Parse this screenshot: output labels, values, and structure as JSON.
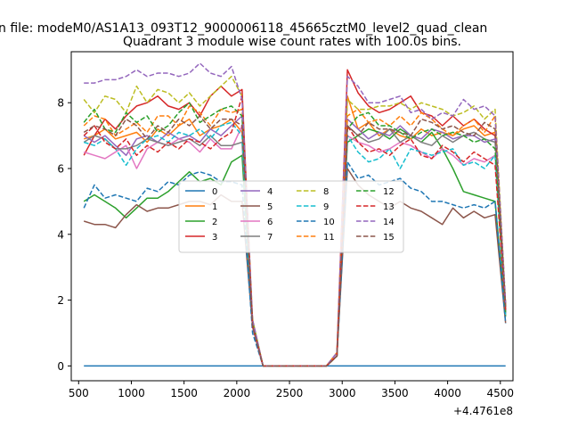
{
  "figure": {
    "suptitle": "n file: modeM0/AS1A13_093T12_9000006118_45665cztM0_level2_quad_clean",
    "title": "Quadrant 3 module wise count rates with 100.0s bins.",
    "offset_text": "+4.4761e8"
  },
  "chart_data": {
    "type": "line",
    "title": "Quadrant 3 module wise count rates with 100.0s bins.",
    "xlabel": "",
    "ylabel": "",
    "xlim": [
      430,
      4620
    ],
    "ylim": [
      -0.45,
      9.55
    ],
    "x": [
      550,
      650,
      750,
      850,
      950,
      1050,
      1150,
      1250,
      1350,
      1450,
      1550,
      1650,
      1750,
      1850,
      1950,
      2050,
      2150,
      2250,
      2350,
      2450,
      2550,
      2650,
      2750,
      2850,
      2950,
      3050,
      3150,
      3250,
      3350,
      3450,
      3550,
      3650,
      3750,
      3850,
      3950,
      4050,
      4150,
      4250,
      4350,
      4450,
      4550
    ],
    "xticks": [
      500,
      1000,
      1500,
      2000,
      2500,
      3000,
      3500,
      4000,
      4500
    ],
    "xtick_labels": [
      "500",
      "1000",
      "1500",
      "2000",
      "2500",
      "3000",
      "3500",
      "4000",
      "4500"
    ],
    "yticks": [
      0,
      2,
      4,
      6,
      8
    ],
    "ytick_labels": [
      "0",
      "2",
      "4",
      "6",
      "8"
    ],
    "legend_location": "center",
    "legend_columns": 4,
    "series": [
      {
        "name": "0",
        "color": "#1f77b4",
        "dash": "solid",
        "values": [
          0,
          0,
          0,
          0,
          0,
          0,
          0,
          0,
          0,
          0,
          0,
          0,
          0,
          0,
          0,
          0,
          0,
          0,
          0,
          0,
          0,
          0,
          0,
          0,
          0,
          0,
          0,
          0,
          0,
          0,
          0,
          0,
          0,
          0,
          0,
          0,
          0,
          0,
          0,
          0,
          0
        ]
      },
      {
        "name": "1",
        "color": "#ff7f0e",
        "dash": "solid",
        "values": [
          6.9,
          7.0,
          7.2,
          6.9,
          7.0,
          7.1,
          6.8,
          7.2,
          7.0,
          7.3,
          7.5,
          7.0,
          7.2,
          7.3,
          7.5,
          7.1,
          1.4,
          0,
          0,
          0,
          0,
          0,
          0,
          0,
          0.3,
          8.2,
          7.2,
          7.4,
          7.0,
          7.2,
          7.0,
          6.9,
          7.2,
          7.0,
          7.1,
          7.0,
          7.2,
          7.3,
          7.0,
          7.1,
          1.8
        ]
      },
      {
        "name": "2",
        "color": "#2ca02c",
        "dash": "solid",
        "values": [
          5.0,
          5.2,
          5.0,
          4.8,
          4.5,
          4.8,
          5.1,
          5.1,
          5.3,
          5.6,
          5.9,
          5.6,
          5.7,
          5.5,
          6.2,
          6.4,
          1.2,
          0,
          0,
          0,
          0,
          0,
          0,
          0,
          0.3,
          6.8,
          7.0,
          7.2,
          7.1,
          6.9,
          7.2,
          7.0,
          6.8,
          7.1,
          6.6,
          6.0,
          5.3,
          5.2,
          5.1,
          5.0,
          1.5
        ]
      },
      {
        "name": "3",
        "color": "#d62728",
        "dash": "solid",
        "values": [
          6.4,
          7.0,
          7.5,
          7.2,
          7.6,
          7.9,
          8.0,
          8.2,
          7.9,
          7.8,
          8.0,
          7.6,
          8.2,
          8.5,
          8.2,
          8.4,
          1.2,
          0,
          0,
          0,
          0,
          0,
          0,
          0,
          0.4,
          9.0,
          8.3,
          7.9,
          7.7,
          7.8,
          8.0,
          8.2,
          7.7,
          7.6,
          7.3,
          7.6,
          7.3,
          7.5,
          7.2,
          7.0,
          1.7
        ]
      },
      {
        "name": "4",
        "color": "#9467bd",
        "dash": "solid",
        "values": [
          7.0,
          6.8,
          7.0,
          6.7,
          6.4,
          6.9,
          7.0,
          6.8,
          7.1,
          6.9,
          7.0,
          6.8,
          7.2,
          7.0,
          7.3,
          7.6,
          1.2,
          0,
          0,
          0,
          0,
          0,
          0,
          0,
          0.3,
          7.5,
          7.2,
          6.9,
          7.1,
          7.0,
          7.3,
          7.0,
          6.9,
          7.2,
          7.1,
          6.9,
          7.0,
          7.0,
          6.8,
          6.9,
          1.6
        ]
      },
      {
        "name": "5",
        "color": "#8c564b",
        "dash": "solid",
        "values": [
          4.4,
          4.3,
          4.3,
          4.2,
          4.6,
          4.9,
          4.7,
          4.8,
          4.8,
          4.9,
          5.0,
          5.0,
          4.9,
          5.2,
          5.0,
          5.0,
          1.2,
          0,
          0,
          0,
          0,
          0,
          0,
          0,
          0.3,
          6.0,
          5.5,
          5.2,
          5.0,
          4.8,
          5.0,
          4.8,
          4.7,
          4.5,
          4.3,
          4.8,
          4.5,
          4.7,
          4.5,
          4.6,
          1.3
        ]
      },
      {
        "name": "6",
        "color": "#e377c2",
        "dash": "solid",
        "values": [
          6.5,
          6.4,
          6.3,
          6.5,
          6.7,
          6.0,
          6.6,
          6.8,
          6.7,
          6.9,
          6.8,
          6.5,
          6.9,
          6.6,
          6.6,
          7.3,
          1.3,
          0,
          0,
          0,
          0,
          0,
          0,
          0,
          0.4,
          7.0,
          6.8,
          6.7,
          6.5,
          6.6,
          6.8,
          6.7,
          6.5,
          6.3,
          6.6,
          6.4,
          6.1,
          6.3,
          6.2,
          6.4,
          1.6
        ]
      },
      {
        "name": "7",
        "color": "#7f7f7f",
        "dash": "solid",
        "values": [
          6.8,
          7.0,
          6.9,
          6.6,
          6.6,
          6.7,
          6.9,
          6.8,
          6.7,
          6.8,
          6.9,
          6.7,
          7.0,
          6.7,
          6.7,
          6.8,
          1.3,
          0,
          0,
          0,
          0,
          0,
          0,
          0,
          0.3,
          7.3,
          7.0,
          6.8,
          6.9,
          7.2,
          6.8,
          7.0,
          6.8,
          6.7,
          7.0,
          6.8,
          7.0,
          7.1,
          6.9,
          6.8,
          1.6
        ]
      },
      {
        "name": "8",
        "color": "#bcbd22",
        "dash": "dashed",
        "values": [
          8.1,
          7.7,
          8.2,
          8.1,
          7.7,
          8.5,
          8.0,
          8.4,
          8.3,
          8.0,
          8.3,
          7.9,
          8.2,
          8.5,
          8.8,
          8.2,
          1.4,
          0,
          0,
          0,
          0,
          0,
          0,
          0,
          0.4,
          8.1,
          7.8,
          7.8,
          7.9,
          7.9,
          8.0,
          7.8,
          8.0,
          7.9,
          7.8,
          7.6,
          7.7,
          7.9,
          7.5,
          7.8,
          1.9
        ]
      },
      {
        "name": "9",
        "color": "#17becf",
        "dash": "dashed",
        "values": [
          6.8,
          6.7,
          6.9,
          6.6,
          6.1,
          6.6,
          6.9,
          7.0,
          6.8,
          7.1,
          7.0,
          7.2,
          6.9,
          7.3,
          7.4,
          7.0,
          1.2,
          0,
          0,
          0,
          0,
          0,
          0,
          0,
          0.3,
          7.0,
          6.5,
          6.2,
          6.3,
          6.6,
          6.0,
          6.6,
          6.5,
          6.4,
          6.5,
          6.6,
          6.1,
          6.2,
          6.0,
          6.4,
          1.5
        ]
      },
      {
        "name": "10",
        "color": "#1f77b4",
        "dash": "dashed",
        "values": [
          4.8,
          5.5,
          5.1,
          5.2,
          5.1,
          5.0,
          5.4,
          5.3,
          5.6,
          5.5,
          5.8,
          5.9,
          5.8,
          5.6,
          5.6,
          5.5,
          1.0,
          0,
          0,
          0,
          0,
          0,
          0,
          0,
          0.3,
          6.2,
          5.7,
          5.8,
          5.5,
          5.6,
          5.7,
          5.4,
          5.3,
          5.0,
          5.0,
          4.9,
          4.8,
          4.9,
          4.8,
          5.0,
          1.3
        ]
      },
      {
        "name": "11",
        "color": "#ff7f0e",
        "dash": "dashed",
        "values": [
          7.3,
          7.6,
          7.5,
          7.0,
          7.2,
          7.4,
          7.1,
          7.6,
          7.6,
          7.3,
          7.9,
          7.7,
          7.3,
          7.8,
          7.7,
          7.8,
          1.3,
          0,
          0,
          0,
          0,
          0,
          0,
          0,
          0.4,
          7.6,
          7.8,
          7.4,
          7.5,
          7.3,
          7.6,
          7.3,
          7.7,
          7.5,
          7.2,
          7.0,
          7.3,
          7.5,
          7.1,
          7.6,
          1.8
        ]
      },
      {
        "name": "12",
        "color": "#2ca02c",
        "dash": "dashed",
        "values": [
          7.4,
          7.8,
          7.2,
          7.1,
          7.7,
          7.4,
          7.6,
          7.1,
          7.3,
          7.7,
          8.0,
          7.4,
          7.6,
          7.8,
          7.9,
          7.6,
          1.3,
          0,
          0,
          0,
          0,
          0,
          0,
          0,
          0.3,
          7.2,
          7.6,
          7.7,
          7.3,
          7.3,
          7.1,
          6.9,
          7.1,
          7.2,
          7.0,
          7.1,
          7.0,
          6.8,
          6.9,
          6.6,
          1.6
        ]
      },
      {
        "name": "13",
        "color": "#d62728",
        "dash": "dashed",
        "values": [
          7.0,
          7.3,
          6.8,
          6.6,
          6.9,
          6.4,
          6.7,
          6.5,
          6.8,
          6.6,
          6.9,
          6.8,
          6.6,
          6.9,
          7.1,
          8.2,
          1.2,
          0,
          0,
          0,
          0,
          0,
          0,
          0,
          0.3,
          7.3,
          6.8,
          6.5,
          6.6,
          6.4,
          6.7,
          6.9,
          6.4,
          6.3,
          6.7,
          6.5,
          6.2,
          6.5,
          6.3,
          6.1,
          1.7
        ]
      },
      {
        "name": "14",
        "color": "#9467bd",
        "dash": "dashed",
        "values": [
          8.6,
          8.6,
          8.7,
          8.7,
          8.8,
          9.0,
          8.8,
          8.9,
          8.9,
          8.8,
          8.9,
          9.2,
          8.9,
          8.8,
          9.1,
          8.1,
          1.4,
          0,
          0,
          0,
          0,
          0,
          0,
          0,
          0.4,
          8.8,
          8.5,
          8.0,
          8.0,
          8.1,
          8.2,
          7.7,
          7.8,
          7.5,
          7.7,
          7.6,
          8.1,
          7.8,
          7.9,
          7.6,
          1.9
        ]
      },
      {
        "name": "15",
        "color": "#8c564b",
        "dash": "dashed",
        "values": [
          7.1,
          7.3,
          7.2,
          7.0,
          7.5,
          7.3,
          6.9,
          7.3,
          7.1,
          7.5,
          7.3,
          7.6,
          7.2,
          7.5,
          7.5,
          7.3,
          1.2,
          0,
          0,
          0,
          0,
          0,
          0,
          0,
          0.3,
          7.3,
          7.0,
          7.4,
          7.2,
          7.2,
          7.1,
          7.0,
          7.5,
          7.4,
          7.2,
          7.3,
          7.1,
          7.0,
          7.4,
          7.2,
          1.8
        ]
      }
    ]
  }
}
